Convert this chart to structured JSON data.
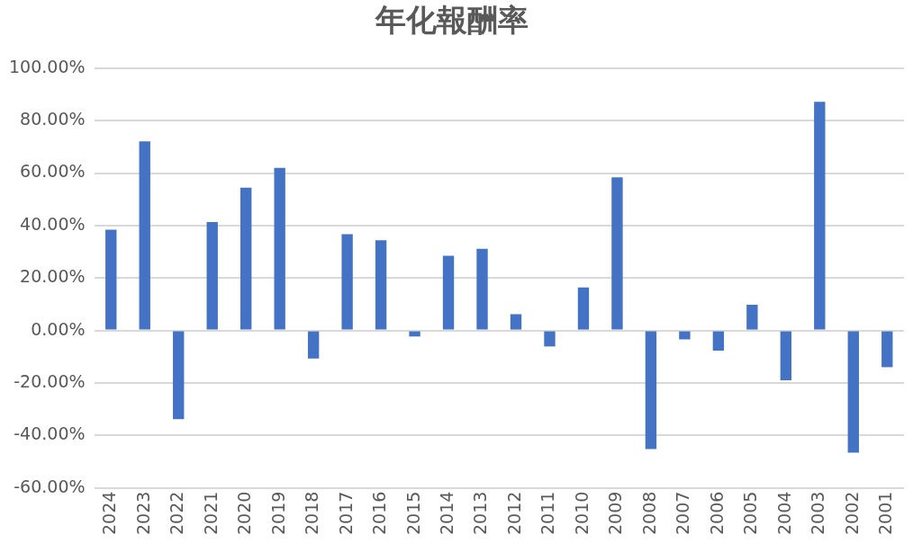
{
  "chart_data": {
    "type": "bar",
    "title": "年化報酬率",
    "categories": [
      "2024",
      "2023",
      "2022",
      "2021",
      "2020",
      "2019",
      "2018",
      "2017",
      "2016",
      "2015",
      "2014",
      "2013",
      "2012",
      "2011",
      "2010",
      "2009",
      "2008",
      "2007",
      "2006",
      "2005",
      "2004",
      "2003",
      "2002",
      "2001"
    ],
    "values": [
      38.4,
      72.1,
      -33.8,
      41.3,
      54.4,
      62,
      -10.7,
      36.7,
      34.4,
      -2.3,
      28.5,
      31.1,
      6.2,
      -6.1,
      16.4,
      58.4,
      -45.2,
      -3.4,
      -7.7,
      9.8,
      -19,
      87.2,
      -46.6,
      -14
    ],
    "color": "#4472c4",
    "ylim": [
      -60,
      100
    ],
    "yticks": [
      {
        "value": -60,
        "label": "-60.00%"
      },
      {
        "value": -40,
        "label": "-40.00%"
      },
      {
        "value": -20,
        "label": "-20.00%"
      },
      {
        "value": 0,
        "label": "0.00%"
      },
      {
        "value": 20,
        "label": "20.00%"
      },
      {
        "value": 40,
        "label": "40.00%"
      },
      {
        "value": 60,
        "label": "60.00%"
      },
      {
        "value": 80,
        "label": "80.00%"
      },
      {
        "value": 100,
        "label": "100.00%"
      }
    ],
    "grid": "y",
    "legend": false
  }
}
